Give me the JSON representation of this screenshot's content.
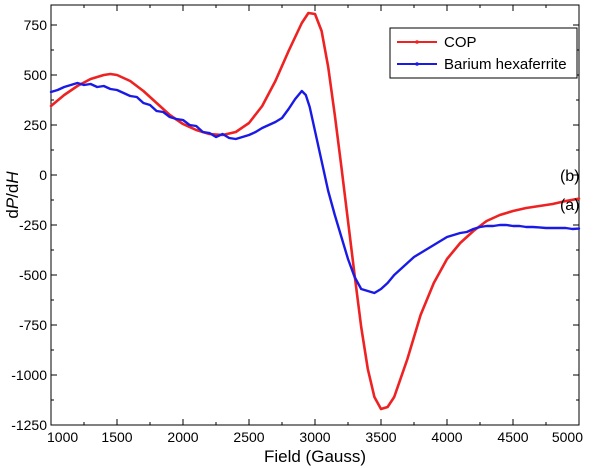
{
  "chart_data": {
    "type": "line",
    "title": "",
    "xlabel": "Field (Gauss)",
    "ylabel_parts": [
      "d",
      "P",
      "/d",
      "H"
    ],
    "xlim": [
      1000,
      5000
    ],
    "ylim": [
      -1250,
      850
    ],
    "xticks": [
      1000,
      1500,
      2000,
      2500,
      3000,
      3500,
      4000,
      4500,
      5000
    ],
    "yticks": [
      750,
      500,
      250,
      0,
      -250,
      -500,
      -750,
      -1000,
      -1250
    ],
    "ytick_labels": [
      "750",
      "500",
      "250",
      "0",
      "-250",
      "-500",
      "-750",
      "-1000",
      "-1250"
    ],
    "grid": false,
    "legend_position": "top-right",
    "series": [
      {
        "name": "COP",
        "color": "#ee2222",
        "x": [
          1000,
          1100,
          1200,
          1300,
          1400,
          1450,
          1500,
          1600,
          1700,
          1800,
          1900,
          2000,
          2100,
          2200,
          2300,
          2400,
          2500,
          2600,
          2700,
          2800,
          2900,
          2950,
          3000,
          3050,
          3100,
          3150,
          3200,
          3250,
          3300,
          3350,
          3400,
          3450,
          3500,
          3550,
          3600,
          3700,
          3800,
          3900,
          4000,
          4100,
          4200,
          4300,
          4400,
          4500,
          4600,
          4700,
          4800,
          4900,
          5000
        ],
        "y": [
          345,
          400,
          445,
          480,
          500,
          505,
          500,
          470,
          420,
          360,
          300,
          255,
          225,
          205,
          200,
          215,
          260,
          345,
          470,
          620,
          760,
          810,
          805,
          720,
          540,
          300,
          40,
          -230,
          -500,
          -760,
          -970,
          -1110,
          -1170,
          -1160,
          -1110,
          -920,
          -700,
          -540,
          -420,
          -340,
          -280,
          -230,
          -200,
          -180,
          -165,
          -155,
          -145,
          -130,
          -118
        ]
      },
      {
        "name": "Barium hexaferrite",
        "color": "#1a1ae6",
        "x": [
          1000,
          1050,
          1100,
          1150,
          1200,
          1250,
          1300,
          1350,
          1400,
          1450,
          1500,
          1550,
          1600,
          1650,
          1700,
          1750,
          1800,
          1850,
          1900,
          1950,
          2000,
          2050,
          2100,
          2150,
          2200,
          2250,
          2300,
          2350,
          2400,
          2450,
          2500,
          2550,
          2600,
          2650,
          2700,
          2750,
          2800,
          2850,
          2900,
          2930,
          2960,
          3000,
          3050,
          3100,
          3150,
          3200,
          3250,
          3300,
          3350,
          3400,
          3450,
          3500,
          3550,
          3600,
          3650,
          3700,
          3750,
          3800,
          3850,
          3900,
          3950,
          4000,
          4050,
          4100,
          4150,
          4200,
          4250,
          4300,
          4350,
          4400,
          4450,
          4500,
          4550,
          4600,
          4650,
          4700,
          4750,
          4800,
          4850,
          4900,
          4950,
          5000
        ],
        "y": [
          415,
          425,
          440,
          450,
          460,
          450,
          455,
          440,
          445,
          430,
          425,
          410,
          395,
          390,
          360,
          350,
          320,
          315,
          290,
          280,
          275,
          250,
          245,
          215,
          210,
          190,
          205,
          185,
          180,
          190,
          200,
          215,
          235,
          250,
          265,
          285,
          330,
          380,
          420,
          400,
          340,
          220,
          70,
          -80,
          -200,
          -310,
          -420,
          -510,
          -570,
          -580,
          -590,
          -570,
          -540,
          -500,
          -470,
          -440,
          -410,
          -390,
          -370,
          -350,
          -330,
          -310,
          -300,
          -290,
          -285,
          -270,
          -260,
          -255,
          -255,
          -250,
          -250,
          -255,
          -255,
          -260,
          -260,
          -262,
          -265,
          -265,
          -265,
          -265,
          -270,
          -268
        ]
      }
    ],
    "annotations": [
      {
        "text": "(b)",
        "x": 4930,
        "y": -30
      },
      {
        "text": "(a)",
        "x": 4930,
        "y": -175
      }
    ]
  }
}
